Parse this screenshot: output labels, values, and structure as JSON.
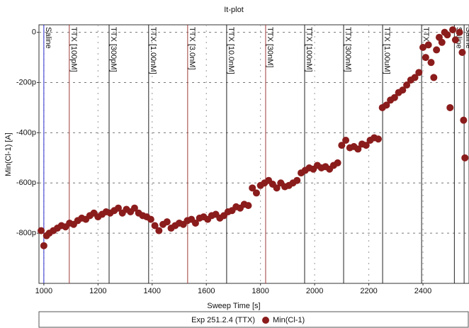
{
  "chart_data": {
    "type": "scatter",
    "title": "It-plot",
    "x_label": "Sweep Time [s]",
    "y_label": "Min(Cl-1) [A]",
    "legend_title": "Exp 251.2.4 (TTX)",
    "xlim": [
      982,
      2570
    ],
    "ylim": [
      -1000,
      30
    ],
    "xticks": [
      1000,
      1200,
      1400,
      1600,
      1800,
      2000,
      2200,
      2400
    ],
    "yticks": [
      0,
      {
        "value": -200,
        "label": "-200p"
      },
      {
        "value": -400,
        "label": "-400p"
      },
      {
        "value": -600,
        "label": "-600p"
      },
      {
        "value": -800,
        "label": "-800p"
      }
    ],
    "grid": true,
    "markers": [
      {
        "x": 1000,
        "label": "Saline",
        "color": "#2a2acf",
        "text_color": "#2a2acf"
      },
      {
        "x": 1094,
        "label": "TTX [100pM]",
        "color": "#a03a3a",
        "text_color": "#7a1f8a"
      },
      {
        "x": 1241,
        "label": "TTX [300pM]",
        "color": "#222222",
        "text_color": "#7a1f8a"
      },
      {
        "x": 1387,
        "label": "TTX [1.00nM]",
        "color": "#222222",
        "text_color": "#7a1f8a"
      },
      {
        "x": 1531,
        "label": "TTX [3.0nM]",
        "color": "#a03a3a",
        "text_color": "#7a1f8a"
      },
      {
        "x": 1675,
        "label": "TTX [10.0nM]",
        "color": "#222222",
        "text_color": "#7a1f8a"
      },
      {
        "x": 1819,
        "label": "TTX [30nM]",
        "color": "#a03a3a",
        "text_color": "#7a1f8a"
      },
      {
        "x": 1963,
        "label": "TTX [100nM]",
        "color": "#222222",
        "text_color": "#7a1f8a"
      },
      {
        "x": 2107,
        "label": "TTX [300nM]",
        "color": "#222222",
        "text_color": "#7a1f8a"
      },
      {
        "x": 2251,
        "label": "TTX [1.00uM]",
        "color": "#222222",
        "text_color": "#7a1f8a"
      },
      {
        "x": 2395,
        "label": "TTX",
        "color": "#222222",
        "text_color": "#7a1f8a"
      },
      {
        "x": 2516,
        "label": "Saline",
        "color": "#222222",
        "text_color": "#2a2acf"
      },
      {
        "x": 2552,
        "label": "Saline",
        "color": "#222222",
        "text_color": "#2a2acf"
      }
    ],
    "series": [
      {
        "name": "Min(Cl-1)",
        "color": "#8b1c1c",
        "x": [
          990,
          1000,
          1010,
          1020,
          1035,
          1050,
          1065,
          1080,
          1095,
          1110,
          1125,
          1140,
          1155,
          1170,
          1185,
          1200,
          1215,
          1230,
          1245,
          1260,
          1275,
          1290,
          1305,
          1320,
          1335,
          1350,
          1365,
          1380,
          1395,
          1410,
          1425,
          1440,
          1455,
          1470,
          1485,
          1500,
          1515,
          1530,
          1545,
          1560,
          1575,
          1590,
          1605,
          1620,
          1635,
          1650,
          1665,
          1680,
          1695,
          1710,
          1725,
          1740,
          1755,
          1770,
          1785,
          1800,
          1815,
          1830,
          1845,
          1860,
          1875,
          1890,
          1905,
          1920,
          1935,
          1950,
          1965,
          1980,
          1995,
          2010,
          2025,
          2040,
          2055,
          2070,
          2085,
          2100,
          2115,
          2130,
          2145,
          2160,
          2175,
          2190,
          2205,
          2220,
          2235,
          2250,
          2265,
          2280,
          2295,
          2310,
          2325,
          2340,
          2355,
          2370,
          2385,
          2400,
          2410,
          2420,
          2430,
          2440,
          2450,
          2460,
          2470,
          2480,
          2490,
          2500,
          2510,
          2520,
          2535,
          2545,
          2550,
          2555
        ],
        "values": [
          -790,
          -850,
          -810,
          -800,
          -790,
          -780,
          -770,
          -775,
          -760,
          -765,
          -750,
          -740,
          -745,
          -730,
          -720,
          -735,
          -725,
          -715,
          -720,
          -710,
          -700,
          -720,
          -705,
          -715,
          -700,
          -720,
          -730,
          -735,
          -745,
          -770,
          -790,
          -765,
          -755,
          -780,
          -770,
          -760,
          -765,
          -750,
          -745,
          -760,
          -740,
          -735,
          -745,
          -730,
          -725,
          -740,
          -730,
          -715,
          -710,
          -695,
          -700,
          -685,
          -690,
          -620,
          -640,
          -610,
          -600,
          -590,
          -605,
          -620,
          -600,
          -615,
          -610,
          -600,
          -590,
          -560,
          -550,
          -540,
          -545,
          -530,
          -540,
          -535,
          -545,
          -530,
          -520,
          -450,
          -430,
          -460,
          -455,
          -465,
          -445,
          -450,
          -430,
          -420,
          -425,
          -300,
          -290,
          -270,
          -260,
          -240,
          -230,
          -210,
          -190,
          -180,
          -160,
          -60,
          -100,
          -50,
          -120,
          -180,
          -70,
          -20,
          -40,
          0,
          -10,
          -300,
          10,
          -30,
          0,
          -80,
          -350,
          -500
        ]
      }
    ]
  }
}
